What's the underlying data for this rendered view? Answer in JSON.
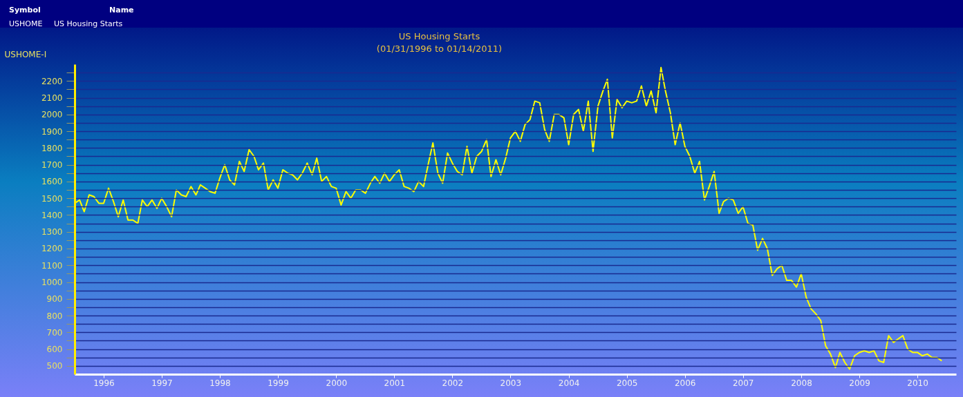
{
  "chart_data": {
    "type": "line",
    "title": "US Housing Starts",
    "subtitle": "(01/31/1996 to 01/14/2011)",
    "ylabel": "USHOME-I",
    "annotations": [
      "Symbol",
      "Name",
      "USHOME",
      "US Housing Starts"
    ],
    "x": [
      "1996-01",
      "1996-02",
      "1996-03",
      "1996-04",
      "1996-05",
      "1996-06",
      "1996-07",
      "1996-08",
      "1996-09",
      "1996-10",
      "1996-11",
      "1996-12",
      "1997-01",
      "1997-02",
      "1997-03",
      "1997-04",
      "1997-05",
      "1997-06",
      "1997-07",
      "1997-08",
      "1997-09",
      "1997-10",
      "1997-11",
      "1997-12",
      "1998-01",
      "1998-02",
      "1998-03",
      "1998-04",
      "1998-05",
      "1998-06",
      "1998-07",
      "1998-08",
      "1998-09",
      "1998-10",
      "1998-11",
      "1998-12",
      "1999-01",
      "1999-02",
      "1999-03",
      "1999-04",
      "1999-05",
      "1999-06",
      "1999-07",
      "1999-08",
      "1999-09",
      "1999-10",
      "1999-11",
      "1999-12",
      "2000-01",
      "2000-02",
      "2000-03",
      "2000-04",
      "2000-05",
      "2000-06",
      "2000-07",
      "2000-08",
      "2000-09",
      "2000-10",
      "2000-11",
      "2000-12",
      "2001-01",
      "2001-02",
      "2001-03",
      "2001-04",
      "2001-05",
      "2001-06",
      "2001-07",
      "2001-08",
      "2001-09",
      "2001-10",
      "2001-11",
      "2001-12",
      "2002-01",
      "2002-02",
      "2002-03",
      "2002-04",
      "2002-05",
      "2002-06",
      "2002-07",
      "2002-08",
      "2002-09",
      "2002-10",
      "2002-11",
      "2002-12",
      "2003-01",
      "2003-02",
      "2003-03",
      "2003-04",
      "2003-05",
      "2003-06",
      "2003-07",
      "2003-08",
      "2003-09",
      "2003-10",
      "2003-11",
      "2003-12",
      "2004-01",
      "2004-02",
      "2004-03",
      "2004-04",
      "2004-05",
      "2004-06",
      "2004-07",
      "2004-08",
      "2004-09",
      "2004-10",
      "2004-11",
      "2004-12",
      "2005-01",
      "2005-02",
      "2005-03",
      "2005-04",
      "2005-05",
      "2005-06",
      "2005-07",
      "2005-08",
      "2005-09",
      "2005-10",
      "2005-11",
      "2005-12",
      "2006-01",
      "2006-02",
      "2006-03",
      "2006-04",
      "2006-05",
      "2006-06",
      "2006-07",
      "2006-08",
      "2006-09",
      "2006-10",
      "2006-11",
      "2006-12",
      "2007-01",
      "2007-02",
      "2007-03",
      "2007-04",
      "2007-05",
      "2007-06",
      "2007-07",
      "2007-08",
      "2007-09",
      "2007-10",
      "2007-11",
      "2007-12",
      "2008-01",
      "2008-02",
      "2008-03",
      "2008-04",
      "2008-05",
      "2008-06",
      "2008-07",
      "2008-08",
      "2008-09",
      "2008-10",
      "2008-11",
      "2008-12",
      "2009-01",
      "2009-02",
      "2009-03",
      "2009-04",
      "2009-05",
      "2009-06",
      "2009-07",
      "2009-08",
      "2009-09",
      "2009-10",
      "2009-11",
      "2009-12",
      "2010-01",
      "2010-02",
      "2010-03",
      "2010-04",
      "2010-05",
      "2010-06",
      "2010-07",
      "2010-08",
      "2010-09",
      "2010-10",
      "2010-11",
      "2010-12"
    ],
    "series": [
      {
        "color": "#ffff00",
        "values": [
          1470,
          1490,
          1420,
          1520,
          1510,
          1470,
          1470,
          1560,
          1480,
          1390,
          1490,
          1370,
          1370,
          1350,
          1490,
          1450,
          1490,
          1440,
          1500,
          1450,
          1390,
          1550,
          1520,
          1510,
          1570,
          1520,
          1580,
          1560,
          1540,
          1530,
          1620,
          1700,
          1610,
          1580,
          1720,
          1660,
          1790,
          1750,
          1670,
          1710,
          1550,
          1610,
          1560,
          1670,
          1650,
          1640,
          1610,
          1650,
          1710,
          1640,
          1740,
          1600,
          1630,
          1570,
          1560,
          1460,
          1540,
          1500,
          1550,
          1550,
          1530,
          1590,
          1630,
          1590,
          1650,
          1600,
          1640,
          1670,
          1570,
          1560,
          1540,
          1600,
          1570,
          1710,
          1830,
          1650,
          1590,
          1770,
          1710,
          1660,
          1640,
          1810,
          1650,
          1750,
          1780,
          1850,
          1630,
          1730,
          1640,
          1740,
          1860,
          1900,
          1840,
          1940,
          1970,
          2080,
          2070,
          1910,
          1840,
          2000,
          2000,
          1980,
          1820,
          2000,
          2030,
          1900,
          2080,
          1780,
          2050,
          2140,
          2210,
          1860,
          2090,
          2040,
          2080,
          2070,
          2080,
          2170,
          2050,
          2140,
          2010,
          2280,
          2140,
          2010,
          1820,
          1950,
          1810,
          1750,
          1650,
          1720,
          1490,
          1570,
          1660,
          1410,
          1480,
          1500,
          1490,
          1410,
          1450,
          1350,
          1340,
          1190,
          1260,
          1200,
          1040,
          1080,
          1100,
          1010,
          1010,
          970,
          1050,
          910,
          840,
          810,
          770,
          620,
          570,
          490,
          580,
          520,
          480,
          560,
          580,
          590,
          580,
          590,
          530,
          520,
          680,
          640,
          660,
          680,
          600,
          580,
          580,
          560,
          570,
          550,
          550,
          530
        ]
      }
    ],
    "ylim": [
      450,
      2300
    ],
    "yticks": [
      500,
      {
        "value": 550,
        "label": null
      },
      600,
      {
        "value": 650,
        "label": null
      },
      700,
      {
        "value": 750,
        "label": null
      },
      800,
      {
        "value": 850,
        "label": null
      },
      900,
      {
        "value": 950,
        "label": null
      },
      1000,
      {
        "value": 1050,
        "label": null
      },
      1100,
      {
        "value": 1150,
        "label": null
      },
      1200,
      {
        "value": 1250,
        "label": null
      },
      1300,
      {
        "value": 1350,
        "label": null
      },
      1400,
      {
        "value": 1450,
        "label": null
      },
      1500,
      {
        "value": 1550,
        "label": null
      },
      1600,
      {
        "value": 1650,
        "label": null
      },
      1700,
      {
        "value": 1750,
        "label": null
      },
      1800,
      {
        "value": 1850,
        "label": null
      },
      1900,
      {
        "value": 1950,
        "label": null
      },
      2000,
      {
        "value": 2050,
        "label": null
      },
      2100,
      {
        "value": 2150,
        "label": null
      },
      2200,
      {
        "value": 2250,
        "label": null
      }
    ],
    "xlim": [
      "1996-01-01",
      "2011-03-01"
    ],
    "xticks": [
      {
        "value": "1996-07-01",
        "label": "1996"
      },
      {
        "value": "1997-07-01",
        "label": "1997"
      },
      {
        "value": "1998-07-01",
        "label": "1998"
      },
      {
        "value": "1999-07-01",
        "label": "1999"
      },
      {
        "value": "2000-07-01",
        "label": "2000"
      },
      {
        "value": "2001-07-01",
        "label": "2001"
      },
      {
        "value": "2002-07-01",
        "label": "2002"
      },
      {
        "value": "2003-07-01",
        "label": "2003"
      },
      {
        "value": "2004-07-01",
        "label": "2004"
      },
      {
        "value": "2005-07-01",
        "label": "2005"
      },
      {
        "value": "2006-07-01",
        "label": "2006"
      },
      {
        "value": "2007-07-01",
        "label": "2007"
      },
      {
        "value": "2008-07-01",
        "label": "2008"
      },
      {
        "value": "2009-07-01",
        "label": "2009"
      },
      {
        "value": "2010-07-01",
        "label": "2010"
      }
    ],
    "grid": "y",
    "marker": "none",
    "line_style": "solid"
  }
}
